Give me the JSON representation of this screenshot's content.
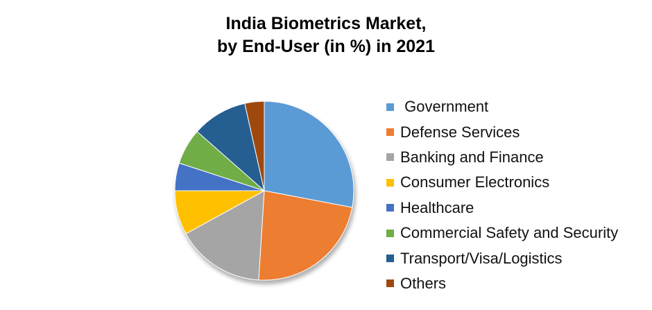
{
  "chart_data": {
    "type": "pie",
    "title_line1": "India Biometrics Market,",
    "title_line2": "by End-User (in %) in 2021",
    "legend_position": "right",
    "start_angle": 0,
    "direction": "clockwise",
    "series": [
      {
        "name": " Government",
        "value": 28,
        "color": "#5B9BD5"
      },
      {
        "name": "Defense Services",
        "value": 23,
        "color": "#ED7D31"
      },
      {
        "name": "Banking and Finance",
        "value": 16,
        "color": "#A5A5A5"
      },
      {
        "name": "Consumer Electronics",
        "value": 8,
        "color": "#FFC000"
      },
      {
        "name": "Healthcare",
        "value": 5,
        "color": "#4472C4"
      },
      {
        "name": "Commercial Safety and Security",
        "value": 6.5,
        "color": "#70AD47"
      },
      {
        "name": "Transport/Visa/Logistics",
        "value": 10,
        "color": "#255E91"
      },
      {
        "name": "Others",
        "value": 3.5,
        "color": "#9E480E"
      }
    ]
  }
}
